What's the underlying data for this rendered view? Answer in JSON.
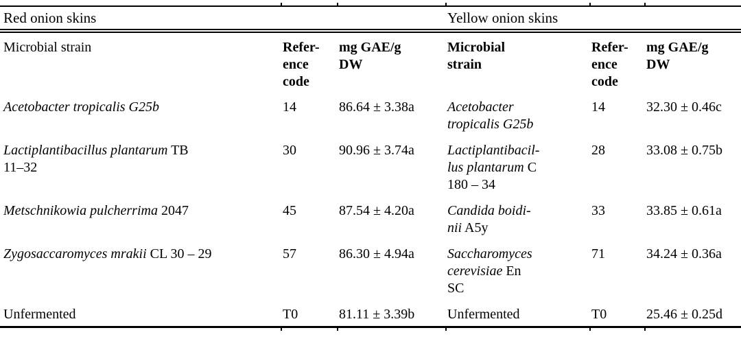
{
  "table": {
    "group_headers": [
      "Red onion skins",
      "Yellow onion skins"
    ],
    "column_headers": {
      "red_strain": [
        "Microbial strain"
      ],
      "red_ref": [
        "Refer-",
        "ence",
        "code"
      ],
      "red_value": [
        "mg GAE/g",
        "DW"
      ],
      "yellow_strain": [
        "Microbial",
        "strain"
      ],
      "yellow_ref": [
        "Refer-",
        "ence",
        "code"
      ],
      "yellow_value": [
        "mg GAE/g",
        "DW"
      ]
    },
    "rows": [
      {
        "red": {
          "strain": [
            [
              {
                "t": "Acetobacter tropicalis G25b",
                "i": true
              }
            ]
          ],
          "ref": "14",
          "value": "86.64 ± 3.38a"
        },
        "yellow": {
          "strain": [
            [
              {
                "t": "Acetobacter",
                "i": true
              }
            ],
            [
              {
                "t": "tropicalis G25b",
                "i": true
              }
            ]
          ],
          "ref": "14",
          "value": "32.30 ± 0.46c"
        }
      },
      {
        "red": {
          "strain": [
            [
              {
                "t": "Lactiplantibacillus plantarum",
                "i": true
              },
              {
                "t": " TB",
                "i": false
              }
            ],
            [
              {
                "t": "11–32",
                "i": false
              }
            ]
          ],
          "ref": "30",
          "value": "90.96 ± 3.74a"
        },
        "yellow": {
          "strain": [
            [
              {
                "t": "Lactiplantibacil-",
                "i": true
              }
            ],
            [
              {
                "t": "lus plantarum",
                "i": true
              },
              {
                "t": " C",
                "i": false
              }
            ],
            [
              {
                "t": "180 – 34",
                "i": false
              }
            ]
          ],
          "ref": "28",
          "value": "33.08 ± 0.75b"
        }
      },
      {
        "red": {
          "strain": [
            [
              {
                "t": "Metschnikowia pulcherrima",
                "i": true
              },
              {
                "t": " 2047",
                "i": false
              }
            ]
          ],
          "ref": "45",
          "value": "87.54 ± 4.20a"
        },
        "yellow": {
          "strain": [
            [
              {
                "t": "Candida boidi-",
                "i": true
              }
            ],
            [
              {
                "t": "nii",
                "i": true
              },
              {
                "t": " A5y",
                "i": false
              }
            ]
          ],
          "ref": "33",
          "value": "33.85 ± 0.61a"
        }
      },
      {
        "red": {
          "strain": [
            [
              {
                "t": "Zygosaccaromyces mrakii",
                "i": true
              },
              {
                "t": " CL 30 – 29",
                "i": false
              }
            ]
          ],
          "ref": "57",
          "value": "86.30 ± 4.94a"
        },
        "yellow": {
          "strain": [
            [
              {
                "t": "Saccharomyces",
                "i": true
              }
            ],
            [
              {
                "t": "cerevisiae",
                "i": true
              },
              {
                "t": " En",
                "i": false
              }
            ],
            [
              {
                "t": "SC",
                "i": false
              }
            ]
          ],
          "ref": "71",
          "value": "34.24 ± 0.36a"
        }
      },
      {
        "red": {
          "strain": [
            [
              {
                "t": "Unfermented",
                "i": false
              }
            ]
          ],
          "ref": "T0",
          "value": "81.11 ± 3.39b"
        },
        "yellow": {
          "strain": [
            [
              {
                "t": "Unfermented",
                "i": false
              }
            ]
          ],
          "ref": "T0",
          "value": "25.46 ± 0.25d"
        }
      }
    ]
  }
}
